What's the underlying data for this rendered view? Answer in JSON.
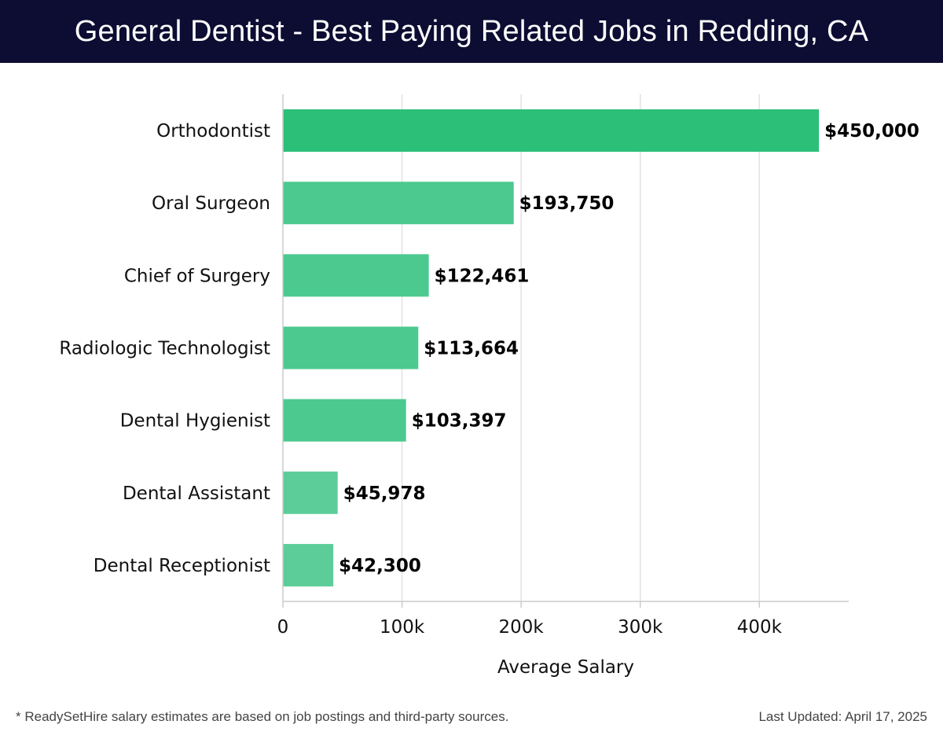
{
  "chart_data": {
    "type": "bar",
    "orientation": "horizontal",
    "title": "General Dentist - Best Paying Related Jobs in Redding, CA",
    "categories": [
      "Orthodontist",
      "Oral Surgeon",
      "Chief of Surgery",
      "Radiologic Technologist",
      "Dental Hygienist",
      "Dental Assistant",
      "Dental Receptionist"
    ],
    "values": [
      450000,
      193750,
      122461,
      113664,
      103397,
      45978,
      42300
    ],
    "value_labels": [
      "$450,000",
      "$193,750",
      "$122,461",
      "$113,664",
      "$103,397",
      "$45,978",
      "$42,300"
    ],
    "xlabel": "Average Salary",
    "ylabel": "",
    "xlim": [
      0,
      475000
    ],
    "xticks": [
      0,
      100000,
      200000,
      300000,
      400000
    ],
    "xtick_labels": [
      "0",
      "100k",
      "200k",
      "300k",
      "400k"
    ],
    "grid": true,
    "colors": {
      "top_bar": "#2bbf78",
      "bar": "#4cc98f",
      "bar_light": "#5ccd98",
      "grid": "#e2e2e2",
      "axis": "#cccccc",
      "header_bg": "#0d0d33"
    }
  },
  "footer": {
    "note": "* ReadySetHire salary estimates are based on job postings and third-party sources.",
    "updated": "Last Updated: April 17, 2025"
  }
}
